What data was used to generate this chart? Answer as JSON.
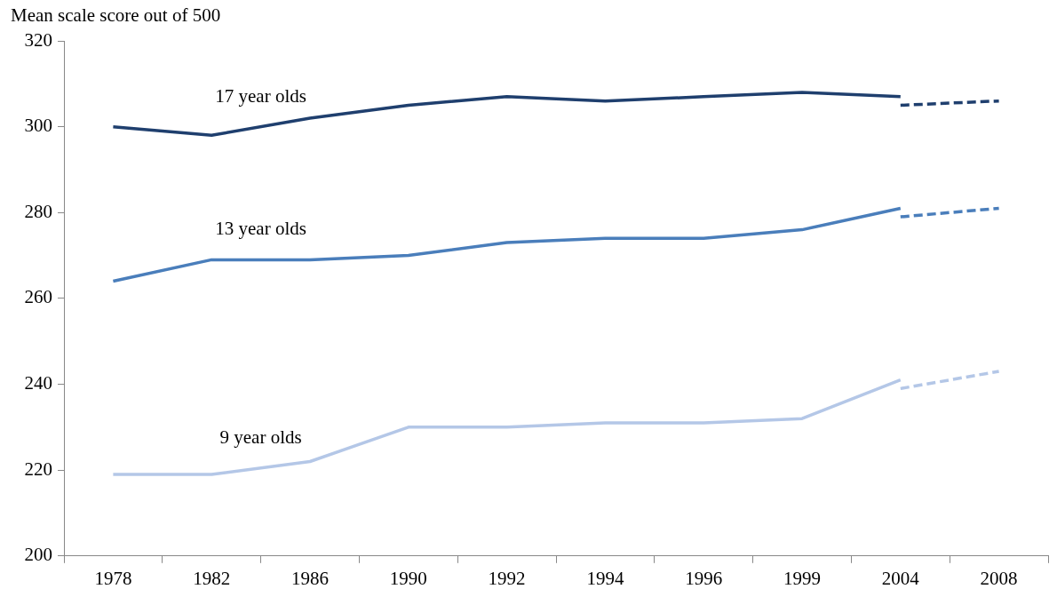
{
  "chart_data": {
    "type": "line",
    "ylabel": "Mean scale score out of 500",
    "categories": [
      "1978",
      "1982",
      "1986",
      "1990",
      "1992",
      "1994",
      "1996",
      "1999",
      "2004",
      "2008"
    ],
    "series": [
      {
        "name": "17 year olds",
        "color": "#1f3f6e",
        "line_style": "solid",
        "values": [
          300,
          298,
          302,
          305,
          307,
          306,
          307,
          308,
          307,
          null
        ]
      },
      {
        "color": "#1f3f6e",
        "line_style": "dashed",
        "values": [
          null,
          null,
          null,
          null,
          null,
          null,
          null,
          null,
          305,
          306
        ]
      },
      {
        "name": "13 year olds",
        "color": "#4a7ebb",
        "line_style": "solid",
        "values": [
          264,
          269,
          269,
          270,
          273,
          274,
          274,
          276,
          281,
          null
        ]
      },
      {
        "color": "#4a7ebb",
        "line_style": "dashed",
        "values": [
          null,
          null,
          null,
          null,
          null,
          null,
          null,
          null,
          279,
          281
        ]
      },
      {
        "name": "9 year olds",
        "color": "#b4c7e7",
        "line_style": "solid",
        "values": [
          219,
          219,
          222,
          230,
          230,
          231,
          231,
          232,
          241,
          null
        ]
      },
      {
        "color": "#b4c7e7",
        "line_style": "dashed",
        "values": [
          null,
          null,
          null,
          null,
          null,
          null,
          null,
          null,
          239,
          243
        ]
      }
    ],
    "ylim": [
      200,
      320
    ],
    "yticks": [
      200,
      220,
      240,
      260,
      280,
      300,
      320
    ],
    "grid": false,
    "legend": false,
    "marker": "none"
  }
}
